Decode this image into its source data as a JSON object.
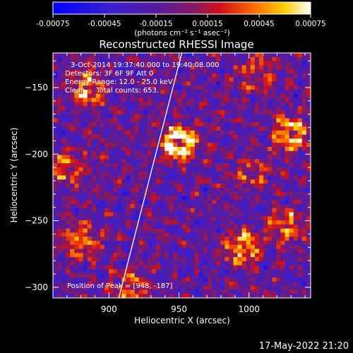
{
  "colorbar": {
    "tick_labels": [
      "-0.00075",
      "-0.00045",
      "-0.00015",
      "0.00015",
      "0.00045",
      "0.00075"
    ],
    "tick_values": [
      -0.00075,
      -0.00045,
      -0.00015,
      0.00015,
      0.00045,
      0.00075
    ],
    "range": [
      -0.00075,
      0.00075
    ],
    "units_label": "(photons cm⁻² s⁻¹ asec⁻²)"
  },
  "chart_data": {
    "type": "heatmap",
    "title": "Reconstructed RHESSI Image",
    "xlabel": "Heliocentric X (arcsec)",
    "ylabel": "Heliocentric Y (arcsec)",
    "xlim": [
      860,
      1044
    ],
    "ylim": [
      -308,
      -124
    ],
    "xticks": [
      900,
      950,
      1000
    ],
    "xtick_labels": [
      "900",
      "950",
      "1000"
    ],
    "yticks": [
      -150,
      -200,
      -250,
      -300
    ],
    "ytick_labels": [
      "−150",
      "−200",
      "−250",
      "−300"
    ],
    "annotations": [
      "3-Oct-2014 19:37:40.000 to 19:40:08.000",
      "Detectors: 3F 6F 9F  Att 0",
      "Energy Range: 12.0 - 25.0 keV",
      "Clean     Total counts: 653.",
      "Position of Peak = [948, -187]"
    ],
    "peak": {
      "x": 948,
      "y": -187
    },
    "limb_line": {
      "x": [
        907,
        952
      ],
      "y": [
        -308,
        -124
      ]
    },
    "colormap": "blue-purple-red-yellow-white",
    "sources": [
      {
        "x": 950,
        "y": -192,
        "amp": 0.00075
      },
      {
        "x": 1030,
        "y": -185,
        "amp": 0.0006
      },
      {
        "x": 995,
        "y": -270,
        "amp": 0.00055
      },
      {
        "x": 1025,
        "y": -255,
        "amp": 0.00045
      },
      {
        "x": 885,
        "y": -150,
        "amp": 0.0005
      },
      {
        "x": 870,
        "y": -210,
        "amp": 0.0004
      },
      {
        "x": 880,
        "y": -265,
        "amp": 0.00045
      },
      {
        "x": 915,
        "y": -300,
        "amp": 0.0004
      },
      {
        "x": 1005,
        "y": -140,
        "amp": 0.00035
      },
      {
        "x": 1000,
        "y": -215,
        "amp": 0.0003
      }
    ]
  },
  "footer": {
    "date_stamp": "17-May-2022 21:20"
  }
}
